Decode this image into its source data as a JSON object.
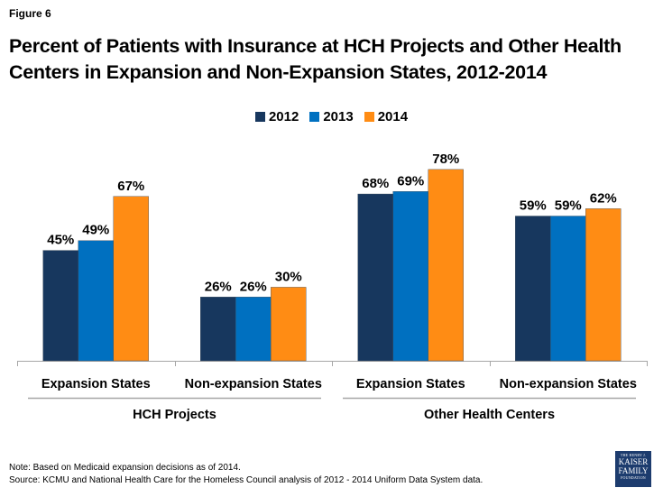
{
  "figure_label": "Figure 6",
  "title": "Percent of Patients with Insurance at HCH Projects and Other Health Centers in Expansion and Non-Expansion States, 2012-2014",
  "colors": {
    "2012": "#17375e",
    "2013": "#0070c0",
    "2014": "#ff8c14",
    "axis": "#a6a6a6"
  },
  "chart_data": {
    "type": "bar",
    "title": "Percent of Patients with Insurance at HCH Projects and Other Health Centers in Expansion and Non-Expansion States, 2012-2014",
    "xlabel": "",
    "ylabel": "",
    "ylim": [
      0,
      100
    ],
    "grid": false,
    "legend_position": "top-center",
    "categories": [
      "Expansion States",
      "Non-expansion States",
      "Expansion States",
      "Non-expansion States"
    ],
    "groups": [
      {
        "label": "HCH Projects",
        "categories": [
          "Expansion States",
          "Non-expansion States"
        ]
      },
      {
        "label": "Other Health Centers",
        "categories": [
          "Expansion States",
          "Non-expansion States"
        ]
      }
    ],
    "series": [
      {
        "name": "2012",
        "values": [
          45,
          26,
          68,
          59
        ],
        "labels": [
          "45%",
          "26%",
          "68%",
          "59%"
        ]
      },
      {
        "name": "2013",
        "values": [
          49,
          26,
          69,
          59
        ],
        "labels": [
          "49%",
          "26%",
          "69%",
          "59%"
        ]
      },
      {
        "name": "2014",
        "values": [
          67,
          30,
          78,
          62
        ],
        "labels": [
          "67%",
          "30%",
          "78%",
          "62%"
        ]
      }
    ]
  },
  "footer": {
    "note": "Note: Based on Medicaid expansion decisions as of 2014.",
    "source": "Source: KCMU and National Health Care for the Homeless Council analysis of 2012 - 2014 Uniform Data System data."
  },
  "logo": {
    "line1": "THE HENRY J.",
    "line2": "KAISER",
    "line3": "FAMILY",
    "line4": "FOUNDATION"
  }
}
